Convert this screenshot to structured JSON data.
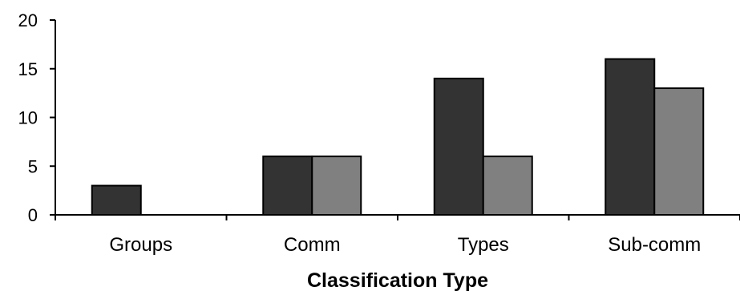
{
  "chart_data": {
    "type": "bar",
    "categories": [
      "Groups",
      "Comm",
      "Types",
      "Sub-comm"
    ],
    "series": [
      {
        "values": [
          3,
          6,
          14,
          16
        ],
        "color": "#333333"
      },
      {
        "values": [
          0,
          6,
          6,
          13
        ],
        "color": "#808080"
      }
    ],
    "xlabel": "Classification Type",
    "ylabel": "",
    "ylim": [
      0,
      20
    ],
    "yticks": [
      0,
      5,
      10,
      15,
      20
    ],
    "grid": false,
    "legend": "none"
  }
}
